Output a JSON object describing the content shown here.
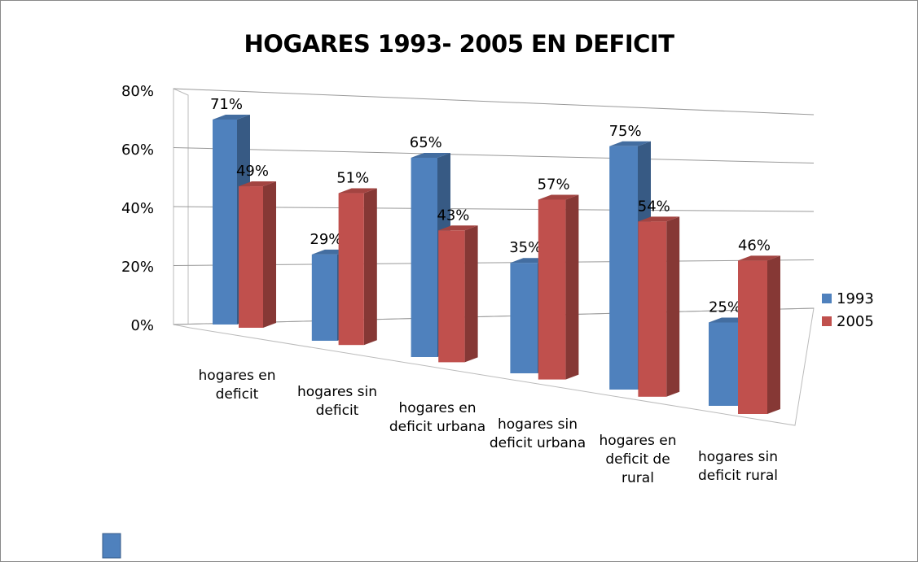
{
  "chart_data": {
    "type": "bar3d",
    "title": "HOGARES 1993- 2005 EN DEFICIT",
    "categories": [
      "hogares en deficit",
      "hogares sin deficit",
      "hogares en deficit urbana",
      "hogares sin deficit urbana",
      "hogares en deficit de rural",
      "hogares sin deficit rural"
    ],
    "series": [
      {
        "name": "1993",
        "color": "#4f81bd",
        "values": [
          71,
          29,
          65,
          35,
          75,
          25
        ],
        "value_labels": [
          "71%",
          "29%",
          "65%",
          "35%",
          "75%",
          "25%"
        ]
      },
      {
        "name": "2005",
        "color": "#c0504d",
        "values": [
          49,
          51,
          43,
          57,
          54,
          46
        ],
        "value_labels": [
          "49%",
          "51%",
          "43%",
          "57%",
          "54%",
          "46%"
        ]
      }
    ],
    "ylim": [
      0,
      80
    ],
    "yticks": [
      {
        "value": 0,
        "label": "0%"
      },
      {
        "value": 20,
        "label": "20%"
      },
      {
        "value": 40,
        "label": "40%"
      },
      {
        "value": 60,
        "label": "60%"
      },
      {
        "value": 80,
        "label": "80%"
      }
    ],
    "grid": true,
    "legend": "right"
  }
}
